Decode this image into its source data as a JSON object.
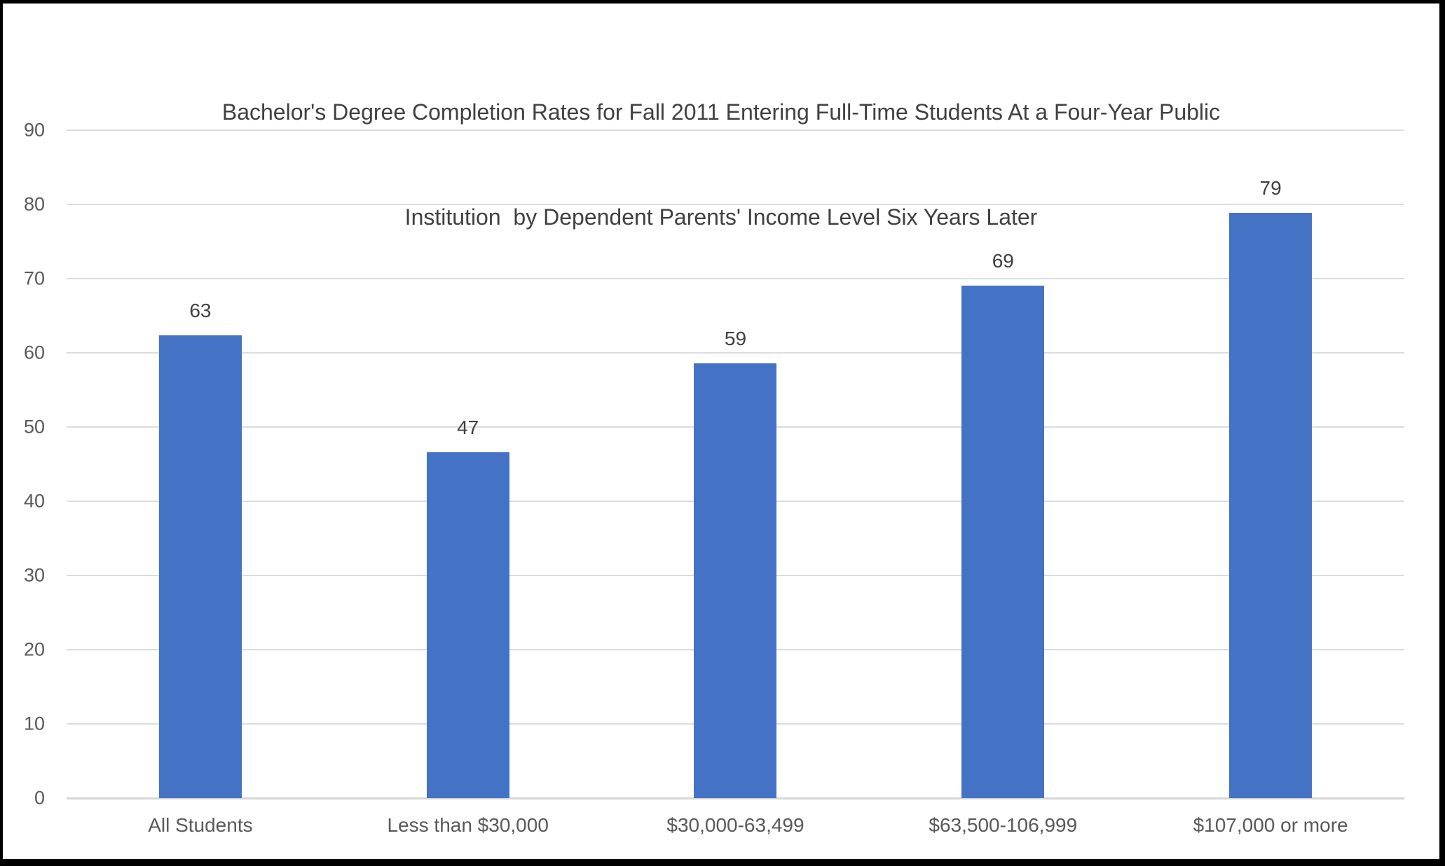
{
  "frame": {
    "background": "#ffffff",
    "border_color": "#000000"
  },
  "chart_data": {
    "type": "bar",
    "title": "Bachelor's Degree Completion Rates for Fall 2011 Entering Full-Time Students At a Four-Year Public Institution  by Dependent Parents' Income Level Six Years Later",
    "title_lines": [
      "Bachelor's Degree Completion Rates for Fall 2011 Entering Full-Time Students At a Four-Year Public",
      "Institution  by Dependent Parents' Income Level Six Years Later"
    ],
    "categories": [
      "All Students",
      "Less than $30,000",
      "$30,000-63,499",
      "$63,500-106,999",
      "$107,000 or more"
    ],
    "values": [
      63,
      47,
      59,
      69,
      79
    ],
    "plotted_values": [
      62.4,
      46.6,
      58.6,
      69.1,
      78.9
    ],
    "y_ticks": [
      0,
      10,
      20,
      30,
      40,
      50,
      60,
      70,
      80,
      90
    ],
    "ylim": [
      0,
      90
    ],
    "xlabel": "",
    "ylabel": "",
    "grid": true,
    "legend": false,
    "colors": {
      "bar": "#4472C4",
      "gridline": "#DCDCDC",
      "axis_line": "#D6D6D6",
      "title_text": "#404040",
      "tick_text": "#595959",
      "category_text": "#595959",
      "data_label_text": "#3F3F3F"
    }
  }
}
